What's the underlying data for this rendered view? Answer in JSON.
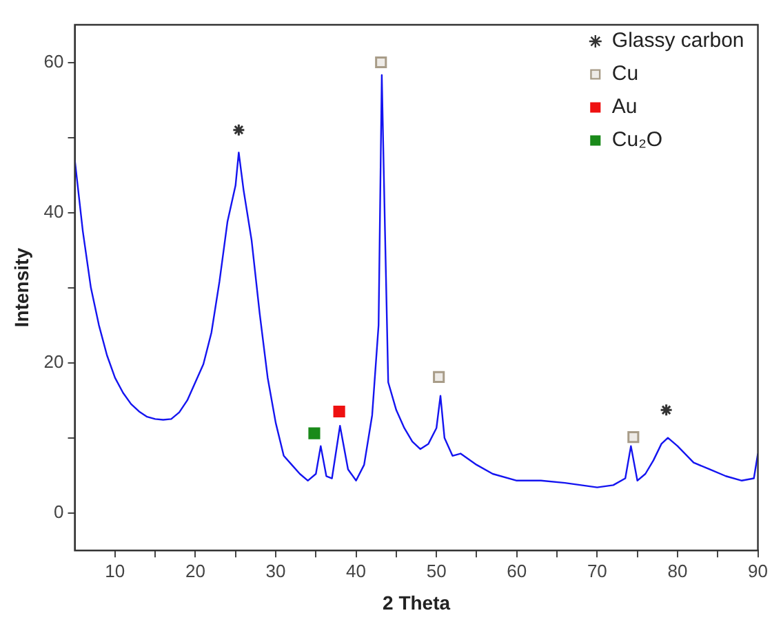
{
  "chart_data": {
    "type": "line",
    "xlabel": "2 Theta",
    "ylabel": "Intensity",
    "xlim": [
      5,
      90
    ],
    "ylim": [
      -5,
      65
    ],
    "xticks": [
      10,
      {
        "value": 15,
        "label": null
      },
      20,
      {
        "value": 25,
        "label": null
      },
      30,
      {
        "value": 35,
        "label": null
      },
      40,
      {
        "value": 45,
        "label": null
      },
      50,
      {
        "value": 55,
        "label": null
      },
      60,
      {
        "value": 65,
        "label": null
      },
      70,
      {
        "value": 75,
        "label": null
      },
      80,
      {
        "value": 85,
        "label": null
      },
      90
    ],
    "yticks": [
      0,
      {
        "value": 10,
        "label": null
      },
      20,
      {
        "value": 30,
        "label": null
      },
      40,
      {
        "value": 50,
        "label": null
      },
      60
    ],
    "grid": false,
    "legend": "top right",
    "line_style": "solid",
    "marker": "none",
    "series": [
      {
        "color": "#1414f0",
        "x": [
          5,
          6,
          7,
          8,
          9,
          10,
          11,
          12,
          13,
          14,
          15,
          16,
          17,
          18,
          19,
          20,
          21,
          22,
          23,
          24,
          25,
          25.4,
          26,
          27,
          28,
          29,
          30,
          31,
          32,
          33,
          34,
          35,
          35.6,
          36.3,
          37,
          38,
          39,
          40,
          41,
          42,
          42.8,
          43.2,
          43.6,
          44,
          45,
          46,
          47,
          48,
          49,
          50,
          50.5,
          51,
          52,
          53,
          55,
          57,
          60,
          63,
          66,
          70,
          72,
          73.5,
          74.2,
          75,
          76,
          77,
          78,
          78.8,
          80,
          82,
          84,
          86,
          88,
          89.5,
          90
        ],
        "values": [
          47,
          37.5,
          30,
          25,
          21,
          18,
          16,
          14.5,
          13.5,
          12.8,
          12.5,
          12.4,
          12.5,
          13.4,
          15,
          17.4,
          19.8,
          24,
          30.8,
          38.8,
          43.6,
          48,
          43,
          36.3,
          26.6,
          18,
          12,
          7.6,
          6.4,
          5.2,
          4.3,
          5.2,
          8.9,
          4.9,
          4.6,
          11.6,
          5.8,
          4.3,
          6.4,
          13,
          25,
          58.3,
          37.5,
          17.4,
          13.7,
          11.3,
          9.5,
          8.5,
          9.2,
          11.3,
          15.6,
          10,
          7.6,
          7.9,
          6.4,
          5.2,
          4.3,
          4.3,
          4,
          3.4,
          3.7,
          4.6,
          8.9,
          4.3,
          5.2,
          7,
          9.2,
          10,
          8.9,
          6.7,
          5.8,
          4.9,
          4.3,
          4.6,
          7.9
        ]
      },
      {
        "type": "scatter",
        "name": "Glassy carbon",
        "color": "#333333",
        "marker": "cross",
        "x": [
          25.4,
          78.6
        ],
        "values": [
          51,
          13.7
        ]
      },
      {
        "type": "scatter",
        "name": "Cu",
        "color": "#a89c88",
        "marker": "square",
        "x": [
          43.1,
          50.3,
          74.5
        ],
        "values": [
          60,
          18.1,
          10.1
        ]
      },
      {
        "type": "scatter",
        "name": "Au",
        "color": "#ee1111",
        "marker": "square",
        "x": [
          37.9
        ],
        "values": [
          13.5
        ]
      },
      {
        "type": "scatter",
        "name": "Cu₂O",
        "color": "#1a8a1a",
        "marker": "square",
        "x": [
          34.8
        ],
        "values": [
          10.6
        ]
      }
    ]
  }
}
